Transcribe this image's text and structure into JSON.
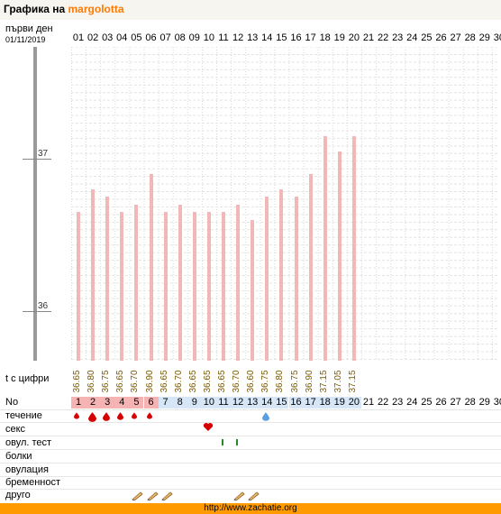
{
  "header": {
    "title_prefix": "Графика на",
    "username": "margolotta"
  },
  "left_labels": {
    "first_day": "първи ден",
    "date": "01/11/2019"
  },
  "days": [
    "01",
    "02",
    "03",
    "04",
    "05",
    "06",
    "07",
    "08",
    "09",
    "10",
    "11",
    "12",
    "13",
    "14",
    "15",
    "16",
    "17",
    "18",
    "19",
    "20",
    "21",
    "22",
    "23",
    "24",
    "25",
    "26",
    "27",
    "28",
    "29",
    "30"
  ],
  "axis": {
    "label_37": "37",
    "label_36": "36"
  },
  "temps": [
    "36.65",
    "36.80",
    "36.75",
    "36.65",
    "36.70",
    "36.90",
    "36.65",
    "36.70",
    "36.65",
    "36.65",
    "36.65",
    "36.70",
    "36.60",
    "36.75",
    "36.80",
    "36.75",
    "36.90",
    "37.15",
    "37.05",
    "37.15"
  ],
  "rows": {
    "temp_label": "t с цифри",
    "no_label": "No",
    "flow_label": "течение",
    "sex_label": "секс",
    "ovu_test_label": "овул. тест",
    "pain_label": "болки",
    "ovulation_label": "овулация",
    "pregnancy_label": "бременност",
    "other_label": "друго"
  },
  "no_numbers": [
    "1",
    "2",
    "3",
    "4",
    "5",
    "6",
    "7",
    "8",
    "9",
    "10",
    "11",
    "12",
    "13",
    "14",
    "15",
    "16",
    "17",
    "18",
    "19",
    "20",
    "21",
    "22",
    "23",
    "24",
    "25",
    "26",
    "27",
    "28",
    "29",
    "30"
  ],
  "footer": {
    "url": "http://www.zachatie.org"
  },
  "colors": {
    "accent": "#ff7a00",
    "bar": "#f2b8b8",
    "flow": "#d40000",
    "blue": "#5aa0e0",
    "period_bg": "#f5b3b3",
    "day_bg": "#d6e6f7"
  }
}
